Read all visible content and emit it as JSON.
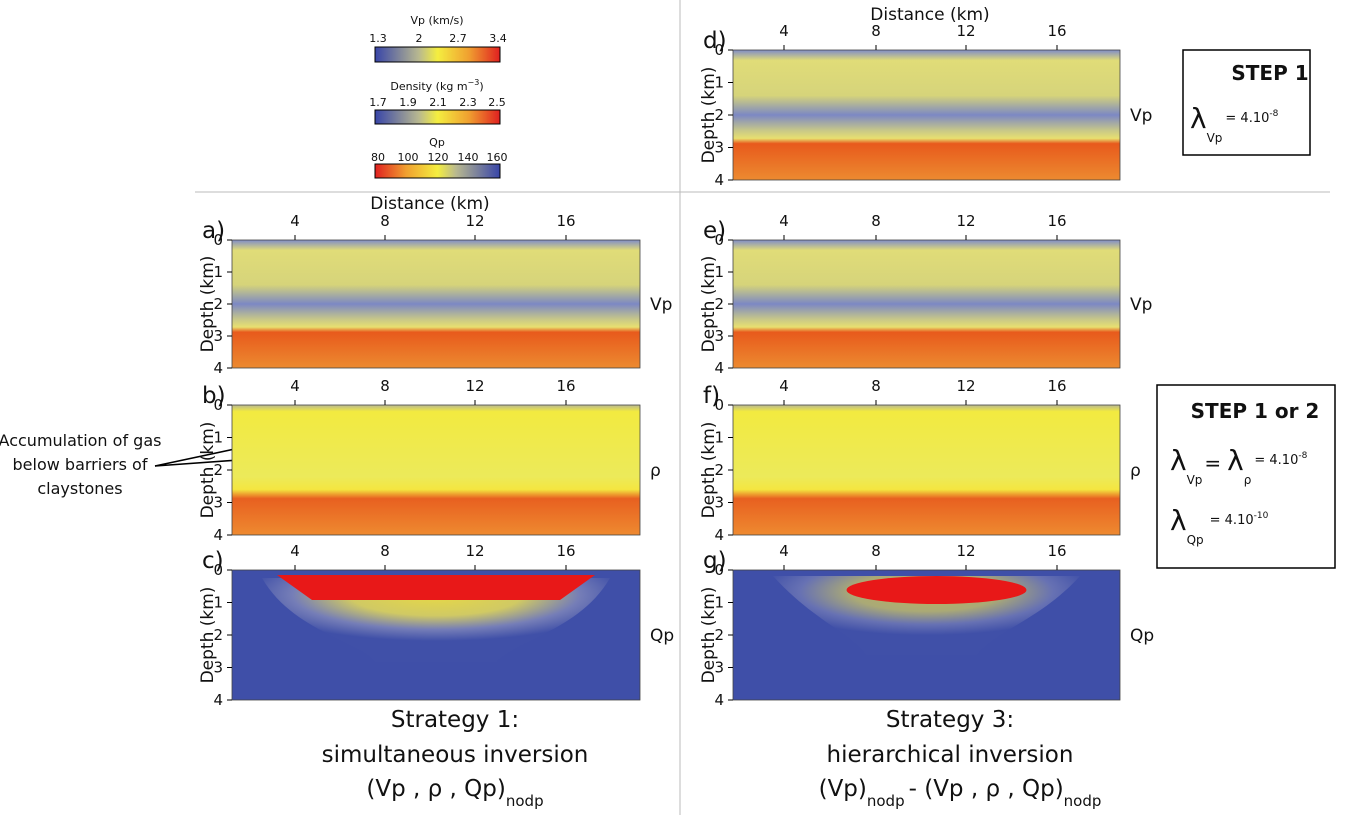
{
  "colorbars": [
    {
      "title": "Vp (km/s)",
      "ticks": [
        "1.3",
        "2",
        "2.7",
        "3.4"
      ]
    },
    {
      "title": "Density (kg m",
      "title_sup": "−3",
      "title_end": ")",
      "ticks": [
        "1.7",
        "1.9",
        "2.1",
        "2.3",
        "2.5"
      ]
    },
    {
      "title": "Qp",
      "ticks": [
        "80",
        "100",
        "120",
        "140",
        "160"
      ]
    }
  ],
  "x_axis_label": "Distance (km)",
  "y_axis_label": "Depth (km)",
  "x_ticks": [
    "4",
    "8",
    "12",
    "16"
  ],
  "y_ticks": [
    "0",
    "1",
    "2",
    "3",
    "4"
  ],
  "panels": [
    {
      "letter": "a)",
      "param": "Vp"
    },
    {
      "letter": "b)",
      "param": "ρ"
    },
    {
      "letter": "c)",
      "param": "Qp"
    },
    {
      "letter": "d)",
      "param": "Vp"
    },
    {
      "letter": "e)",
      "param": "Vp"
    },
    {
      "letter": "f)",
      "param": "ρ"
    },
    {
      "letter": "g)",
      "param": "Qp"
    }
  ],
  "annotation": [
    "Accumulation of gas",
    "below barriers of",
    "claystones"
  ],
  "steps": [
    {
      "title": "STEP 1",
      "symbol": "λ",
      "sub1": "Vp",
      "eq": "= 4.10",
      "exp": "-8"
    },
    {
      "title": "STEP 1 or 2",
      "symbol": "λ",
      "sub1": "Vp",
      "eq1": "=",
      "sub2": "ρ",
      "eq": "= 4.10",
      "exp": "-8",
      "sub3": "Qp",
      "eq3": "= 4.10",
      "exp3": "-10"
    }
  ],
  "captions": [
    {
      "line1": "Strategy 1:",
      "line2": "simultaneous inversion",
      "line3": "(Vp , ρ , Qp)",
      "line3_sub": "nodp"
    },
    {
      "line1": "Strategy 3:",
      "line2": "hierarchical inversion",
      "line3a": "(Vp)",
      "line3a_sub": "nodp",
      "line3b": "-   (Vp , ρ , Qp)",
      "line3b_sub": "nodp"
    }
  ]
}
